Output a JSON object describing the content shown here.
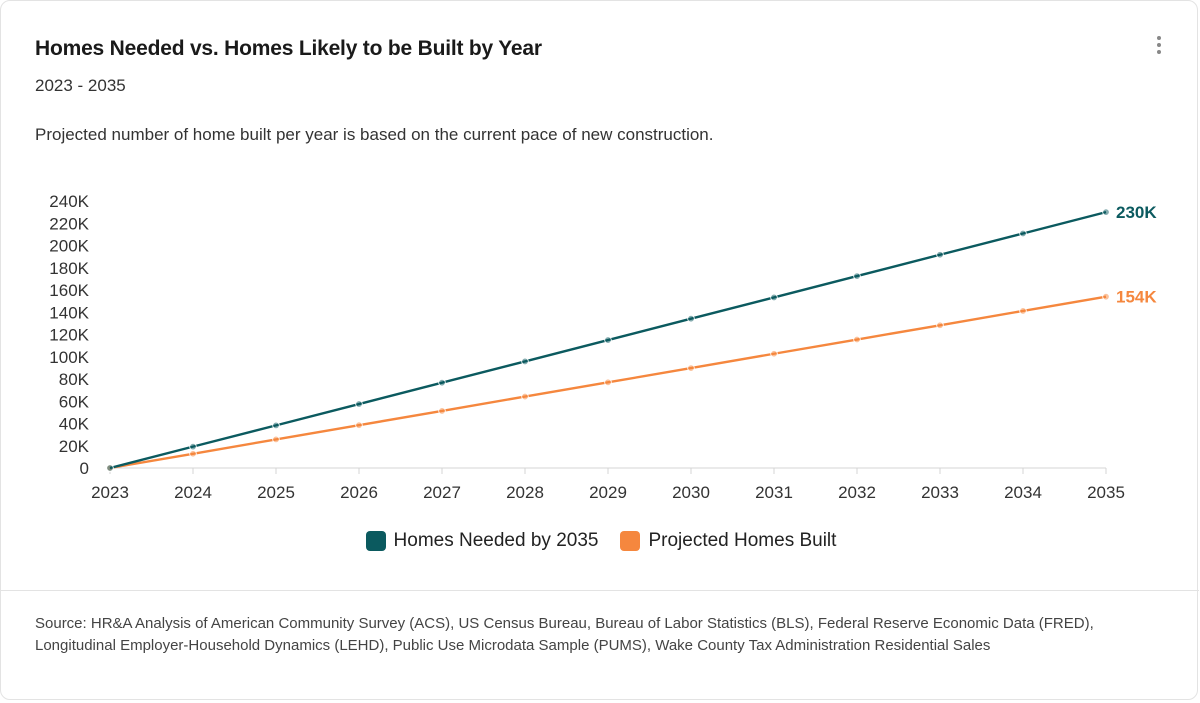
{
  "card": {
    "title": "Homes Needed vs. Homes Likely to be Built by Year",
    "subtitle": "2023 - 2035",
    "description": "Projected number of home built per year is based on the current pace of new construction.",
    "menu_icon": "more-vertical-icon",
    "source": "Source: HR&A Analysis of American Community Survey (ACS), US Census Bureau, Bureau of Labor Statistics (BLS), Federal Reserve Economic Data (FRED), Longitudinal Employer-Household Dynamics (LEHD), Public Use Microdata Sample (PUMS), Wake County Tax Administration Residential Sales"
  },
  "chart_data": {
    "type": "line",
    "title": "Homes Needed vs. Homes Likely to be Built by Year",
    "subtitle": "2023 - 2035",
    "xlabel": "",
    "ylabel": "",
    "x": [
      "2023",
      "2024",
      "2025",
      "2026",
      "2027",
      "2028",
      "2029",
      "2030",
      "2031",
      "2032",
      "2033",
      "2034",
      "2035"
    ],
    "ylim": [
      0,
      240000
    ],
    "yticks": [
      0,
      20000,
      40000,
      60000,
      80000,
      100000,
      120000,
      140000,
      160000,
      180000,
      200000,
      220000,
      240000
    ],
    "ytick_labels": [
      "0",
      "20K",
      "40K",
      "60K",
      "80K",
      "100K",
      "120K",
      "140K",
      "160K",
      "180K",
      "200K",
      "220K",
      "240K"
    ],
    "grid": false,
    "legend_position": "bottom",
    "series": [
      {
        "name": "Homes Needed by 2035",
        "color": "#0b5a5f",
        "values": [
          0,
          19200,
          38300,
          57500,
          76700,
          95800,
          115000,
          134200,
          153300,
          172500,
          191700,
          210800,
          230000
        ],
        "end_label": "230K"
      },
      {
        "name": "Projected Homes Built",
        "color": "#f5873e",
        "values": [
          0,
          12800,
          25700,
          38500,
          51300,
          64200,
          77000,
          89800,
          102700,
          115500,
          128300,
          141200,
          154000
        ],
        "end_label": "154K"
      }
    ]
  }
}
